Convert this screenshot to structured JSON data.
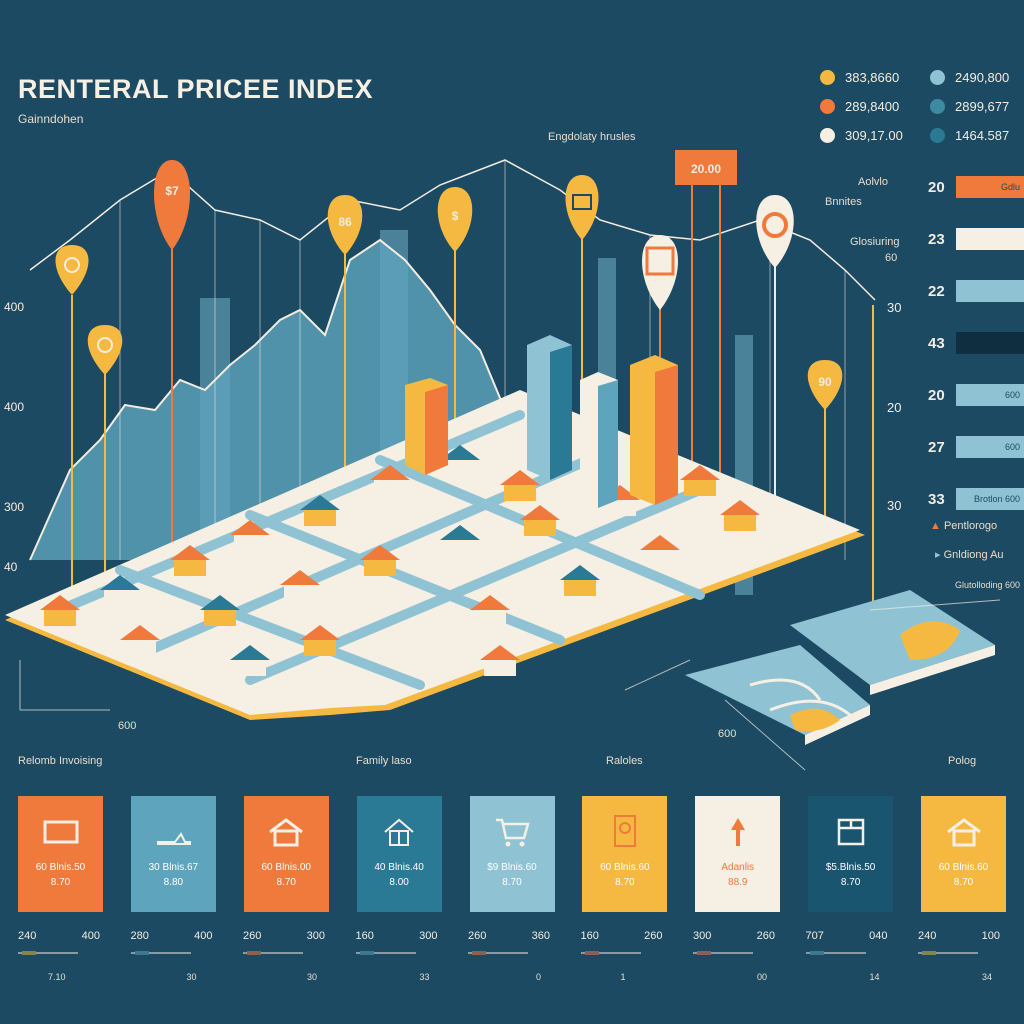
{
  "header": {
    "title": "RENTERAL PRICEE INDEX",
    "subtitle": "Gainndohen"
  },
  "legend": [
    {
      "label": "383,8660",
      "color": "#f5b942"
    },
    {
      "label": "2490,800",
      "color": "#8fc3d4"
    },
    {
      "label": "289,8400",
      "color": "#ef7a3c"
    },
    {
      "label": "2899,677",
      "color": "#3d8ba3"
    },
    {
      "label": "309,17.00",
      "color": "#f6efe3"
    },
    {
      "label": "1464.587",
      "color": "#2a7a96"
    }
  ],
  "chart": {
    "left_axis": [
      "400",
      "400",
      "300",
      "40"
    ],
    "right_axis": [
      "30",
      "20",
      "30"
    ],
    "bottom_label": "600",
    "mid_label": "Engdolaty hrusles",
    "map_label": "600",
    "pins": [
      {
        "label": "$7",
        "color": "#ef7a3c"
      },
      {
        "label": "86",
        "color": "#f5b942"
      },
      {
        "label": "$",
        "color": "#f5b942"
      },
      {
        "label": "20.00",
        "color": "#ef7a3c"
      },
      {
        "label": "90",
        "color": "#f5b942"
      }
    ]
  },
  "right_panel": {
    "label_top": "Aolvlo",
    "label_second": "Bnnites",
    "label_third": "Glosiuring",
    "label_third_sub": "60",
    "bars": [
      {
        "num": "20",
        "text": "Gdlu",
        "color": "#ef7a3c",
        "fraction": 0.72
      },
      {
        "num": "23",
        "text": "",
        "color": "#f6efe3",
        "fraction": 0.72
      },
      {
        "num": "22",
        "text": "",
        "color": "#8fc3d4",
        "fraction": 0.72
      },
      {
        "num": "43",
        "text": "",
        "color": "#0f2e3f",
        "fraction": 0.72
      },
      {
        "num": "20",
        "text": "600",
        "color": "#8fc3d4",
        "fraction": 0.72
      },
      {
        "num": "27",
        "text": "600",
        "color": "#8fc3d4",
        "fraction": 0.72
      },
      {
        "num": "33",
        "text": "Brotlon  600",
        "color": "#8fc3d4",
        "fraction": 0.72
      }
    ],
    "note1": "Pentlorogo",
    "note2": "Gnldiong Au",
    "note3": "Glutolloding  600"
  },
  "sections": [
    "Relomb Invoising",
    "Family laso",
    "Raloles",
    "Polog"
  ],
  "cards": [
    {
      "color": "#ef7a3c",
      "icon": "frame-icon",
      "v1": "60 Blnis.50",
      "v2": "8.70",
      "scale_left": "240",
      "scale_right": "400",
      "mark": "#f5b942",
      "foot": "7.10"
    },
    {
      "color": "#5fa4bd",
      "icon": "chart-icon",
      "v1": "30 Blnis.67",
      "v2": "8.80",
      "scale_left": "280",
      "scale_right": "400",
      "mark": "#5fa4bd",
      "foot": "30"
    },
    {
      "color": "#ef7a3c",
      "icon": "house-icon",
      "v1": "60 Blnis.00",
      "v2": "8.70",
      "scale_left": "260",
      "scale_right": "300",
      "mark": "#ef7a3c",
      "foot": "30"
    },
    {
      "color": "#2a7a96",
      "icon": "house-icon",
      "v1": "40 Blnis.40",
      "v2": "8.00",
      "scale_left": "160",
      "scale_right": "300",
      "mark": "#5fa4bd",
      "foot": "33"
    },
    {
      "color": "#8fc3d4",
      "icon": "cart-icon",
      "v1": "$9 Blnis.60",
      "v2": "8.70",
      "scale_left": "260",
      "scale_right": "360",
      "mark": "#ef7a3c",
      "foot": "0"
    },
    {
      "color": "#f5b942",
      "icon": "pin-icon",
      "v1": "60 Blnis.60",
      "v2": "8.70",
      "scale_left": "160",
      "scale_right": "260",
      "mark": "#ef7a3c",
      "foot": "1"
    },
    {
      "color": "#f6efe3",
      "icon": "arrow-up-icon",
      "v1": "Adanlis",
      "v2": "88.9",
      "scale_left": "300",
      "scale_right": "260",
      "mark": "#ef7a3c",
      "foot": "00"
    },
    {
      "color": "#1a5570",
      "icon": "calendar-icon",
      "v1": "$5.Blnis.50",
      "v2": "8.70",
      "scale_left": "707",
      "scale_right": "040",
      "mark": "#5fa4bd",
      "foot": "14"
    },
    {
      "color": "#f5b942",
      "icon": "house-icon",
      "v1": "60 Blnis.60",
      "v2": "8.70",
      "scale_left": "240",
      "scale_right": "100",
      "mark": "#f5b942",
      "foot": "34"
    }
  ]
}
